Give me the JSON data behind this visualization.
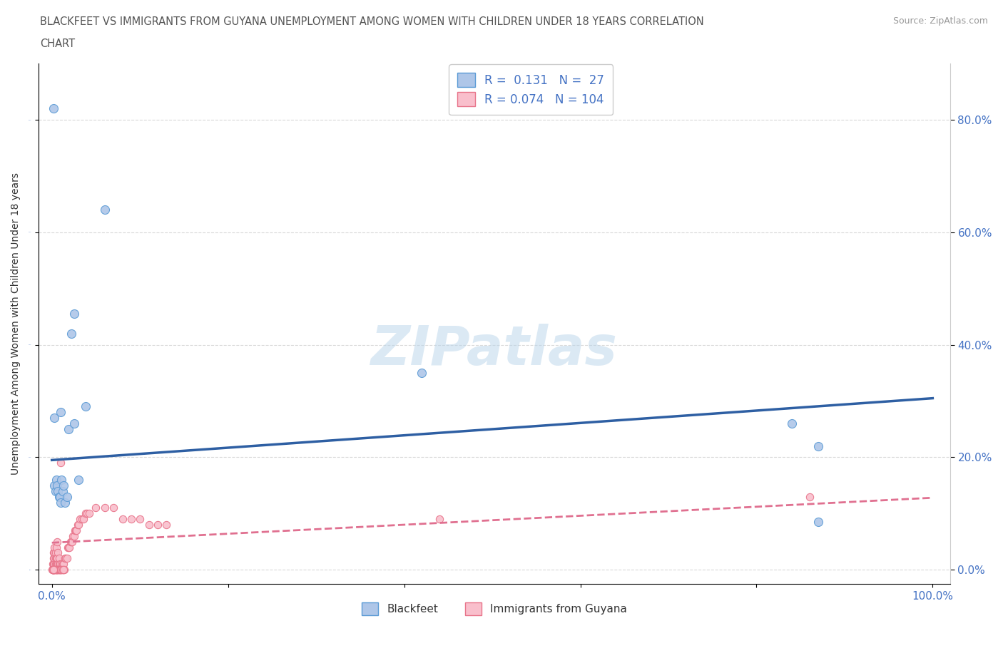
{
  "title_line1": "BLACKFEET VS IMMIGRANTS FROM GUYANA UNEMPLOYMENT AMONG WOMEN WITH CHILDREN UNDER 18 YEARS CORRELATION",
  "title_line2": "CHART",
  "source": "Source: ZipAtlas.com",
  "ylabel": "Unemployment Among Women with Children Under 18 years",
  "legend_label1": "Blackfeet",
  "legend_label2": "Immigrants from Guyana",
  "R1": 0.131,
  "N1": 27,
  "R2": 0.074,
  "N2": 104,
  "blue_fill": "#aec6e8",
  "blue_edge": "#5b9bd5",
  "pink_fill": "#f9bfcc",
  "pink_edge": "#e8748a",
  "blue_line": "#2e5fa3",
  "pink_line": "#e07090",
  "background_color": "#ffffff",
  "grid_color": "#d0d0d0",
  "axis_label_color": "#4472c4",
  "title_color": "#555555",
  "bf_x": [
    0.003,
    0.003,
    0.004,
    0.005,
    0.006,
    0.007,
    0.008,
    0.009,
    0.01,
    0.01,
    0.011,
    0.012,
    0.013,
    0.015,
    0.017,
    0.019,
    0.022,
    0.025,
    0.025,
    0.03,
    0.038,
    0.42,
    0.84,
    0.87,
    0.87,
    0.002,
    0.06
  ],
  "bf_y": [
    0.27,
    0.15,
    0.14,
    0.16,
    0.15,
    0.14,
    0.13,
    0.13,
    0.12,
    0.28,
    0.16,
    0.14,
    0.15,
    0.12,
    0.13,
    0.25,
    0.42,
    0.455,
    0.26,
    0.16,
    0.29,
    0.35,
    0.26,
    0.085,
    0.22,
    0.82,
    0.64
  ],
  "gy_x": [
    0.0005,
    0.001,
    0.001,
    0.001,
    0.001,
    0.001,
    0.001,
    0.002,
    0.002,
    0.002,
    0.002,
    0.002,
    0.002,
    0.002,
    0.003,
    0.003,
    0.003,
    0.003,
    0.003,
    0.003,
    0.004,
    0.004,
    0.004,
    0.004,
    0.005,
    0.005,
    0.005,
    0.005,
    0.006,
    0.006,
    0.006,
    0.006,
    0.007,
    0.007,
    0.007,
    0.008,
    0.008,
    0.008,
    0.009,
    0.009,
    0.01,
    0.01,
    0.011,
    0.011,
    0.012,
    0.012,
    0.013,
    0.013,
    0.014,
    0.015,
    0.016,
    0.017,
    0.018,
    0.019,
    0.02,
    0.021,
    0.022,
    0.023,
    0.024,
    0.025,
    0.026,
    0.027,
    0.028,
    0.029,
    0.03,
    0.032,
    0.034,
    0.036,
    0.038,
    0.04,
    0.042,
    0.05,
    0.06,
    0.07,
    0.08,
    0.09,
    0.1,
    0.11,
    0.12,
    0.13,
    0.001,
    0.001,
    0.002,
    0.002,
    0.003,
    0.003,
    0.004,
    0.004,
    0.005,
    0.005,
    0.006,
    0.007,
    0.007,
    0.008,
    0.008,
    0.009,
    0.01,
    0.011,
    0.012,
    0.013,
    0.44,
    0.86,
    0.001,
    0.002
  ],
  "gy_y": [
    0.0,
    0.0,
    0.0,
    0.0,
    0.0,
    0.0,
    0.01,
    0.0,
    0.0,
    0.0,
    0.01,
    0.01,
    0.02,
    0.03,
    0.0,
    0.0,
    0.01,
    0.02,
    0.03,
    0.04,
    0.0,
    0.01,
    0.02,
    0.03,
    0.0,
    0.01,
    0.02,
    0.04,
    0.0,
    0.01,
    0.02,
    0.05,
    0.0,
    0.01,
    0.03,
    0.0,
    0.01,
    0.02,
    0.0,
    0.01,
    0.0,
    0.19,
    0.0,
    0.01,
    0.0,
    0.01,
    0.0,
    0.01,
    0.0,
    0.02,
    0.02,
    0.02,
    0.04,
    0.04,
    0.04,
    0.05,
    0.05,
    0.05,
    0.06,
    0.06,
    0.07,
    0.07,
    0.07,
    0.08,
    0.08,
    0.09,
    0.09,
    0.09,
    0.1,
    0.1,
    0.1,
    0.11,
    0.11,
    0.11,
    0.09,
    0.09,
    0.09,
    0.08,
    0.08,
    0.08,
    0.0,
    0.0,
    0.0,
    0.0,
    0.0,
    0.0,
    0.0,
    0.0,
    0.0,
    0.0,
    0.0,
    0.0,
    0.0,
    0.0,
    0.0,
    0.0,
    0.0,
    0.0,
    0.0,
    0.0,
    0.09,
    0.13,
    0.0,
    0.0
  ],
  "bf_line_x0": 0.0,
  "bf_line_x1": 1.0,
  "bf_line_y0": 0.195,
  "bf_line_y1": 0.305,
  "gy_line_x0": 0.0,
  "gy_line_x1": 1.0,
  "gy_line_y0": 0.048,
  "gy_line_y1": 0.128,
  "xlim": [
    -0.015,
    1.02
  ],
  "ylim": [
    -0.025,
    0.9
  ],
  "ytick_vals": [
    0.0,
    0.2,
    0.4,
    0.6,
    0.8
  ],
  "ytick_labels": [
    "0.0%",
    "20.0%",
    "40.0%",
    "60.0%",
    "80.0%"
  ],
  "xtick_vals": [
    0.0,
    0.2,
    0.4,
    0.6,
    0.8,
    1.0
  ],
  "xtick_labels": [
    "0.0%",
    "",
    "",
    "",
    "",
    "100.0%"
  ]
}
